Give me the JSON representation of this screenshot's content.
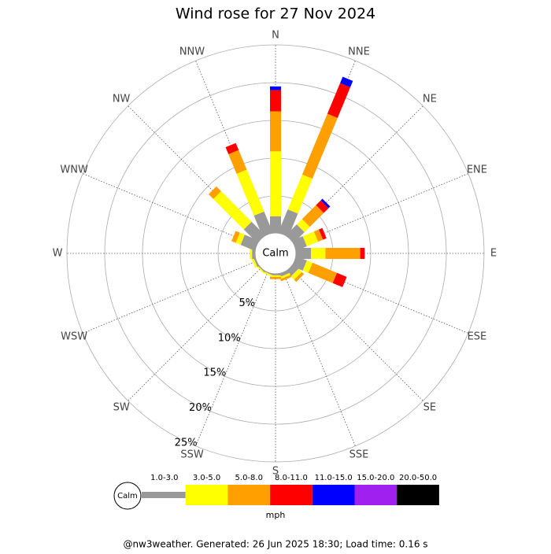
{
  "chart_data": {
    "type": "windrose",
    "title": "Wind rose for 27 Nov 2024",
    "center_label": "Calm",
    "unit": "mph",
    "footer": "@nw3weather. Generated: 26 Jun 2025 18:30; Load time: 0.16 s",
    "categories": [
      "N",
      "NNE",
      "NE",
      "ENE",
      "E",
      "ESE",
      "SE",
      "SSE",
      "S",
      "SSW",
      "SW",
      "WSW",
      "W",
      "WNW",
      "NW",
      "NNW"
    ],
    "rlim": [
      0,
      25
    ],
    "rticks": [
      {
        "value": 5,
        "label": "5%"
      },
      {
        "value": 10,
        "label": "10%"
      },
      {
        "value": 15,
        "label": "15%"
      },
      {
        "value": 20,
        "label": "20%"
      },
      {
        "value": 25,
        "label": "25%"
      }
    ],
    "series": [
      {
        "name": "1.0-3.0",
        "color": "#999999",
        "values": [
          2.3,
          3.4,
          2.1,
          1.6,
          2.1,
          1.6,
          1.0,
          0.5,
          0.3,
          0.2,
          0.2,
          0.3,
          0.5,
          2.1,
          2.6,
          3.1
        ]
      },
      {
        "name": "3.0-5.0",
        "color": "#ffff00",
        "values": [
          8.6,
          5.0,
          1.0,
          1.6,
          1.9,
          0.8,
          0.6,
          0.3,
          0.2,
          0.2,
          0.2,
          0.3,
          0.3,
          0.7,
          5.7,
          6.0
        ]
      },
      {
        "name": "5.0-8.0",
        "color": "#ffa000",
        "values": [
          5.3,
          8.7,
          2.6,
          0.7,
          4.6,
          3.5,
          0.4,
          0.3,
          0.3,
          0,
          0,
          0,
          0,
          0.6,
          0.9,
          2.8
        ]
      },
      {
        "name": "8.0-11.0",
        "color": "#ff0000",
        "values": [
          2.8,
          4.4,
          0.9,
          0.5,
          0.6,
          1.4,
          0,
          0,
          0,
          0,
          0,
          0,
          0,
          0,
          0,
          1.0
        ]
      },
      {
        "name": "11.0-15.0",
        "color": "#0000ff",
        "values": [
          0.5,
          0.9,
          0.3,
          0,
          0,
          0,
          0,
          0,
          0,
          0,
          0,
          0,
          0,
          0,
          0,
          0
        ]
      },
      {
        "name": "15.0-20.0",
        "color": "#a020f0",
        "values": [
          0,
          0,
          0,
          0,
          0,
          0,
          0,
          0,
          0,
          0,
          0,
          0,
          0,
          0,
          0,
          0
        ]
      },
      {
        "name": "20.0-50.0",
        "color": "#000000",
        "values": [
          0,
          0,
          0,
          0,
          0,
          0,
          0,
          0,
          0,
          0,
          0,
          0,
          0,
          0,
          0,
          0
        ]
      }
    ]
  }
}
